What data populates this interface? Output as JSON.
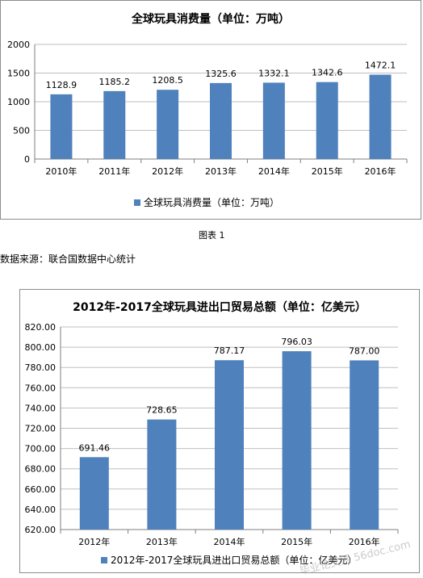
{
  "colors": {
    "bar": "#4f81bd",
    "grid": "#bfbfbf",
    "axis": "#7f7f7f"
  },
  "caption": "图表 1",
  "source": "数据来源：联合国数据中心统计",
  "watermark": "毕业论文网 56doc.com",
  "chart_data": [
    {
      "type": "bar",
      "title": "全球玩具消费量（单位：万吨）",
      "categories": [
        "2010年",
        "2011年",
        "2012年",
        "2013年",
        "2014年",
        "2015年",
        "2016年"
      ],
      "series": [
        {
          "name": "全球玩具消费量（单位：万吨）",
          "values": [
            1128.9,
            1185.2,
            1208.5,
            1325.6,
            1332.1,
            1342.6,
            1472.1
          ]
        }
      ],
      "data_labels": [
        "1128.9",
        "1185.2",
        "1208.5",
        "1325.6",
        "1332.1",
        "1342.6",
        "1472.1"
      ],
      "ylim": [
        0,
        2000
      ],
      "yticks": [
        "0",
        "500",
        "1000",
        "1500",
        "2000"
      ],
      "yticks_values": [
        0,
        500,
        1000,
        1500,
        2000
      ],
      "grid": true,
      "legend": "bottom"
    },
    {
      "type": "bar",
      "title": "2012年-2017全球玩具进出口贸易总额（单位：亿美元）",
      "categories": [
        "2012年",
        "2013年",
        "2014年",
        "2015年",
        "2016年"
      ],
      "series": [
        {
          "name": "2012年-2017全球玩具进出口贸易总额（单位：亿美元）",
          "values": [
            691.46,
            728.65,
            787.17,
            796.03,
            787.0
          ]
        }
      ],
      "data_labels": [
        "691.46",
        "728.65",
        "787.17",
        "796.03",
        "787.00"
      ],
      "ylim": [
        620,
        820
      ],
      "yticks": [
        "620.00",
        "640.00",
        "660.00",
        "680.00",
        "700.00",
        "720.00",
        "740.00",
        "760.00",
        "780.00",
        "800.00",
        "820.00"
      ],
      "yticks_values": [
        620,
        640,
        660,
        680,
        700,
        720,
        740,
        760,
        780,
        800,
        820
      ],
      "grid": true,
      "legend": "bottom"
    }
  ]
}
